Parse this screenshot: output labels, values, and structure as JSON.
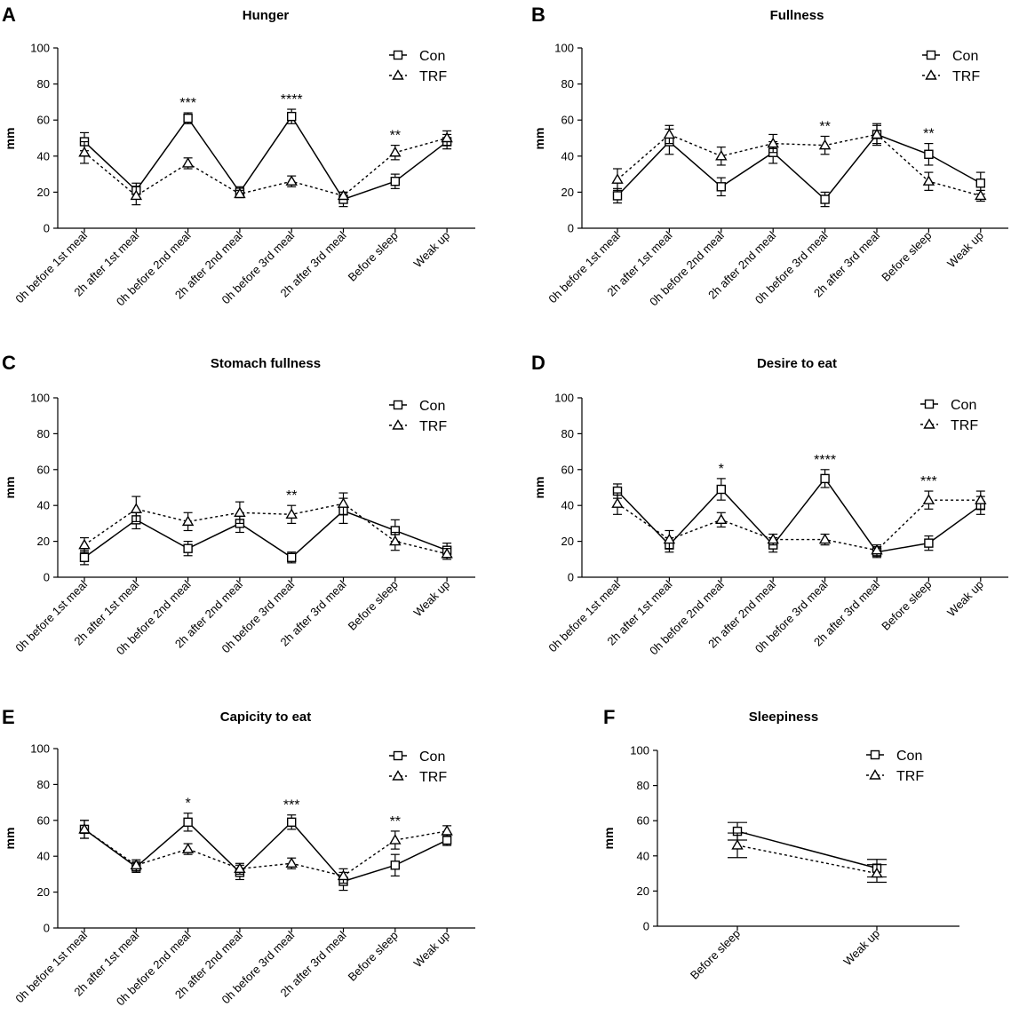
{
  "legend": {
    "con": "Con",
    "trf": "TRF"
  },
  "chart_data": [
    {
      "panel": "A",
      "type": "line",
      "title": "Hunger",
      "ylabel": "mm",
      "xlabel": "",
      "ylim": [
        0,
        100
      ],
      "yticks": [
        0,
        20,
        40,
        60,
        80,
        100
      ],
      "categories": [
        "0h before 1st meal",
        "2h after 1st meal",
        "0h before 2nd meal",
        "2h after 2nd meal",
        "0h before 3rd meal",
        "2h after 3rd meal",
        "Before sleep",
        "Weak up"
      ],
      "series": [
        {
          "name": "Con",
          "values": [
            48,
            21,
            61,
            20,
            62,
            16,
            26,
            48
          ],
          "errors": [
            5,
            4,
            3,
            3,
            4,
            4,
            4,
            4
          ]
        },
        {
          "name": "TRF",
          "values": [
            42,
            18,
            36,
            19,
            26,
            18,
            42,
            50
          ],
          "errors": [
            6,
            5,
            3,
            2,
            3,
            2,
            4,
            4
          ]
        }
      ],
      "significance": [
        {
          "index": 2,
          "label": "***"
        },
        {
          "index": 4,
          "label": "****"
        },
        {
          "index": 6,
          "label": "**"
        }
      ]
    },
    {
      "panel": "B",
      "type": "line",
      "title": "Fullness",
      "ylabel": "mm",
      "xlabel": "",
      "ylim": [
        0,
        100
      ],
      "yticks": [
        0,
        20,
        40,
        60,
        80,
        100
      ],
      "categories": [
        "0h before 1st meal",
        "2h after 1st meal",
        "0h before 2nd meal",
        "2h after 2nd meal",
        "0h before 3rd meal",
        "2h after 3rd meal",
        "Before sleep",
        "Weak up"
      ],
      "series": [
        {
          "name": "Con",
          "values": [
            18,
            48,
            23,
            42,
            16,
            52,
            41,
            25
          ],
          "errors": [
            4,
            7,
            5,
            6,
            4,
            6,
            6,
            6
          ]
        },
        {
          "name": "TRF",
          "values": [
            27,
            52,
            40,
            47,
            46,
            52,
            26,
            18
          ],
          "errors": [
            6,
            5,
            5,
            5,
            5,
            5,
            5,
            3
          ]
        }
      ],
      "significance": [
        {
          "index": 4,
          "label": "**"
        },
        {
          "index": 6,
          "label": "**"
        }
      ]
    },
    {
      "panel": "C",
      "type": "line",
      "title": "Stomach fullness",
      "ylabel": "mm",
      "xlabel": "",
      "ylim": [
        0,
        100
      ],
      "yticks": [
        0,
        20,
        40,
        60,
        80,
        100
      ],
      "categories": [
        "0h before 1st meal",
        "2h after 1st meal",
        "0h before 2nd meal",
        "2h after 2nd meal",
        "0h before 3rd meal",
        "2h after 3rd meal",
        "Before sleep",
        "Weak up"
      ],
      "series": [
        {
          "name": "Con",
          "values": [
            11,
            32,
            16,
            30,
            11,
            37,
            26,
            15
          ],
          "errors": [
            4,
            5,
            4,
            5,
            3,
            7,
            6,
            4
          ]
        },
        {
          "name": "TRF",
          "values": [
            18,
            38,
            31,
            36,
            35,
            41,
            20,
            13
          ],
          "errors": [
            4,
            7,
            5,
            6,
            5,
            6,
            5,
            3
          ]
        }
      ],
      "significance": [
        {
          "index": 4,
          "label": "**"
        }
      ]
    },
    {
      "panel": "D",
      "type": "line",
      "title": "Desire to eat",
      "ylabel": "mm",
      "xlabel": "",
      "ylim": [
        0,
        100
      ],
      "yticks": [
        0,
        20,
        40,
        60,
        80,
        100
      ],
      "categories": [
        "0h before 1st meal",
        "2h after 1st meal",
        "0h before 2nd meal",
        "2h after 2nd meal",
        "0h before 3rd meal",
        "2h after 3rd meal",
        "Before sleep",
        "Weak up"
      ],
      "series": [
        {
          "name": "Con",
          "values": [
            48,
            18,
            49,
            18,
            55,
            14,
            19,
            40
          ],
          "errors": [
            4,
            4,
            6,
            4,
            5,
            3,
            4,
            5
          ]
        },
        {
          "name": "TRF",
          "values": [
            41,
            21,
            32,
            21,
            21,
            15,
            43,
            43
          ],
          "errors": [
            6,
            5,
            4,
            3,
            3,
            3,
            5,
            5
          ]
        }
      ],
      "significance": [
        {
          "index": 2,
          "label": "*"
        },
        {
          "index": 4,
          "label": "****"
        },
        {
          "index": 6,
          "label": "***"
        }
      ]
    },
    {
      "panel": "E",
      "type": "line",
      "title": "Capicity to eat",
      "ylabel": "mm",
      "xlabel": "",
      "ylim": [
        0,
        100
      ],
      "yticks": [
        0,
        20,
        40,
        60,
        80,
        100
      ],
      "categories": [
        "0h before 1st meal",
        "2h after 1st meal",
        "0h before 2nd meal",
        "2h after 2nd meal",
        "0h before 3rd meal",
        "2h after 3rd meal",
        "Before sleep",
        "Weak up"
      ],
      "series": [
        {
          "name": "Con",
          "values": [
            55,
            34,
            59,
            31,
            59,
            26,
            35,
            49
          ],
          "errors": [
            5,
            3,
            5,
            4,
            4,
            5,
            6,
            3
          ]
        },
        {
          "name": "TRF",
          "values": [
            55,
            35,
            44,
            33,
            36,
            29,
            49,
            54
          ],
          "errors": [
            5,
            3,
            3,
            3,
            3,
            4,
            5,
            3
          ]
        }
      ],
      "significance": [
        {
          "index": 2,
          "label": "*"
        },
        {
          "index": 4,
          "label": "***"
        },
        {
          "index": 6,
          "label": "**"
        }
      ]
    },
    {
      "panel": "F",
      "type": "line",
      "title": "Sleepiness",
      "ylabel": "mm",
      "xlabel": "",
      "ylim": [
        0,
        100
      ],
      "yticks": [
        0,
        20,
        40,
        60,
        80,
        100
      ],
      "categories": [
        "Before sleep",
        "Weak up"
      ],
      "series": [
        {
          "name": "Con",
          "values": [
            54,
            33
          ],
          "errors": [
            5,
            5
          ]
        },
        {
          "name": "TRF",
          "values": [
            46,
            30
          ],
          "errors": [
            7,
            5
          ]
        }
      ],
      "significance": []
    }
  ]
}
